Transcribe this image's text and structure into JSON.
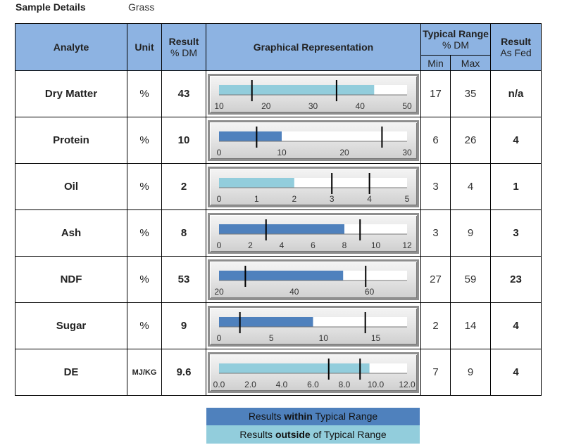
{
  "sample": {
    "label": "Sample Details",
    "value": "Grass"
  },
  "header": {
    "analyte": "Analyte",
    "unit": "Unit",
    "result_line1": "Result",
    "result_line2": "% DM",
    "graph": "Graphical Representation",
    "typical_line1": "Typical Range",
    "typical_line2": "% DM",
    "min": "Min",
    "max": "Max",
    "asfed_line1": "Result",
    "asfed_line2": "As Fed"
  },
  "colors": {
    "within": "#4f81bd",
    "outside": "#92cddc",
    "header": "#8db3e2"
  },
  "rows": [
    {
      "analyte": "Dry Matter",
      "unit": "%",
      "result": "43",
      "min": "17",
      "max": "35",
      "as_fed": "n/a",
      "status": "outside",
      "value": 43,
      "axis_min": 10,
      "axis_max": 50,
      "ticks": [
        "10",
        "20",
        "30",
        "40",
        "50"
      ]
    },
    {
      "analyte": "Protein",
      "unit": "%",
      "result": "10",
      "min": "6",
      "max": "26",
      "as_fed": "4",
      "status": "within",
      "value": 10,
      "axis_min": 0,
      "axis_max": 30,
      "ticks": [
        "0",
        "10",
        "20",
        "30"
      ]
    },
    {
      "analyte": "Oil",
      "unit": "%",
      "result": "2",
      "min": "3",
      "max": "4",
      "as_fed": "1",
      "status": "outside",
      "value": 2,
      "axis_min": 0,
      "axis_max": 5,
      "ticks": [
        "0",
        "1",
        "2",
        "3",
        "4",
        "5"
      ]
    },
    {
      "analyte": "Ash",
      "unit": "%",
      "result": "8",
      "min": "3",
      "max": "9",
      "as_fed": "3",
      "status": "within",
      "value": 8,
      "axis_min": 0,
      "axis_max": 12,
      "ticks": [
        "0",
        "2",
        "4",
        "6",
        "8",
        "10",
        "12"
      ]
    },
    {
      "analyte": "NDF",
      "unit": "%",
      "result": "53",
      "min": "27",
      "max": "59",
      "as_fed": "23",
      "status": "within",
      "value": 53,
      "axis_min": 20,
      "axis_max": 70,
      "ticks": [
        "20",
        "40",
        "60"
      ]
    },
    {
      "analyte": "Sugar",
      "unit": "%",
      "result": "9",
      "min": "2",
      "max": "14",
      "as_fed": "4",
      "status": "within",
      "value": 9,
      "axis_min": 0,
      "axis_max": 18,
      "ticks": [
        "0",
        "5",
        "10",
        "15"
      ]
    },
    {
      "analyte": "DE",
      "unit": "MJ/KG",
      "result": "9.6",
      "min": "7",
      "max": "9",
      "as_fed": "4",
      "status": "outside",
      "value": 9.6,
      "axis_min": 0,
      "axis_max": 12,
      "ticks": [
        "0.0",
        "2.0",
        "4.0",
        "6.0",
        "8.0",
        "10.0",
        "12.0"
      ]
    }
  ],
  "legend": {
    "within_pre": "Results ",
    "within_bold": "within",
    "within_post": " Typical Range",
    "outside_pre": "Results ",
    "outside_bold": "outside",
    "outside_post": " of Typical Range"
  }
}
